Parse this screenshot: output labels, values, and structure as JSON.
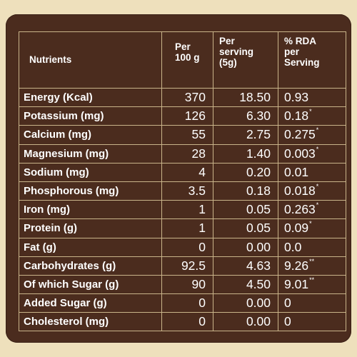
{
  "headers": {
    "nutrients": "Nutrients",
    "per_100g": "Per\n100 g",
    "per_serving": "Per\nserving\n(5g)",
    "rda": "% RDA\nper\nServing"
  },
  "rows": [
    {
      "name": "Energy (Kcal)",
      "per_100g": "370",
      "per_serving": "18.50",
      "rda": "0.93",
      "mark": ""
    },
    {
      "name": "Potassium (mg)",
      "per_100g": "126",
      "per_serving": "6.30",
      "rda": "0.18",
      "mark": "*"
    },
    {
      "name": "Calcium (mg)",
      "per_100g": "55",
      "per_serving": "2.75",
      "rda": "0.275",
      "mark": "*"
    },
    {
      "name": "Magnesium (mg)",
      "per_100g": "28",
      "per_serving": "1.40",
      "rda": "0.003",
      "mark": "*"
    },
    {
      "name": "Sodium (mg)",
      "per_100g": "4",
      "per_serving": "0.20",
      "rda": "0.01",
      "mark": ""
    },
    {
      "name": "Phosphorous (mg)",
      "per_100g": "3.5",
      "per_serving": "0.18",
      "rda": "0.018",
      "mark": "*"
    },
    {
      "name": "Iron (mg)",
      "per_100g": "1",
      "per_serving": "0.05",
      "rda": "0.263",
      "mark": "*"
    },
    {
      "name": "Protein (g)",
      "per_100g": "1",
      "per_serving": "0.05",
      "rda": "0.09",
      "mark": "*"
    },
    {
      "name": "Fat (g)",
      "per_100g": "0",
      "per_serving": "0.00",
      "rda": "0.0",
      "mark": ""
    },
    {
      "name": "Carbohydrates (g)",
      "per_100g": "92.5",
      "per_serving": "4.63",
      "rda": "9.26",
      "mark": "**"
    },
    {
      "name": "Of which Sugar (g)",
      "per_100g": "90",
      "per_serving": "4.50",
      "rda": "9.01",
      "mark": "**"
    },
    {
      "name": "Added Sugar (g)",
      "per_100g": "0",
      "per_serving": "0.00",
      "rda": "0",
      "mark": ""
    },
    {
      "name": "Cholesterol (mg)",
      "per_100g": "0",
      "per_serving": "0.00",
      "rda": "0",
      "mark": ""
    }
  ],
  "colors": {
    "background": "#eee0bc",
    "panel": "#4b2c1e",
    "grid": "#c9b48a",
    "text": "#ffffff"
  }
}
